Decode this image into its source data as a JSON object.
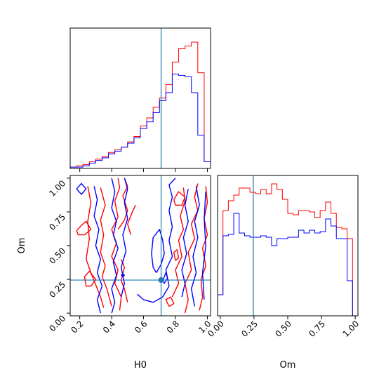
{
  "chart_data": {
    "type": "corner",
    "parameters": [
      "H0",
      "Om"
    ],
    "xlabel_H0": "H0",
    "xlabel_Om": "Om",
    "ylabel_Om": "Om",
    "truth": {
      "H0": 0.71,
      "Om": 0.245
    },
    "axis_ranges": {
      "H0": [
        0.14,
        1.02
      ],
      "Om": [
        -0.02,
        1.02
      ]
    },
    "ticks": {
      "H0": [
        "0.2",
        "0.4",
        "0.6",
        "0.8",
        "1.0"
      ],
      "Om": [
        "0.00",
        "0.25",
        "0.50",
        "0.75",
        "1.00"
      ]
    },
    "series_colors": {
      "red": "#ff0000",
      "blue": "#0000ff",
      "truth": "#1f77b4"
    },
    "hist_H0": {
      "bin_edges": [
        0.14,
        0.18,
        0.22,
        0.26,
        0.3,
        0.34,
        0.38,
        0.42,
        0.46,
        0.5,
        0.54,
        0.58,
        0.62,
        0.66,
        0.7,
        0.74,
        0.78,
        0.82,
        0.86,
        0.9,
        0.94,
        0.98,
        1.02
      ],
      "red": [
        1,
        2,
        3,
        5,
        7,
        9,
        12,
        14,
        16,
        20,
        24,
        32,
        38,
        46,
        53,
        63,
        80,
        90,
        92,
        95,
        72,
        5
      ],
      "blue": [
        1,
        1,
        2,
        4,
        6,
        8,
        11,
        13,
        16,
        19,
        23,
        30,
        35,
        42,
        51,
        57,
        71,
        70,
        69,
        57,
        25,
        5
      ]
    },
    "hist_Om": {
      "bin_edges": [
        -0.02,
        0.02,
        0.06,
        0.1,
        0.14,
        0.18,
        0.22,
        0.26,
        0.3,
        0.34,
        0.38,
        0.42,
        0.46,
        0.5,
        0.54,
        0.58,
        0.62,
        0.66,
        0.7,
        0.74,
        0.78,
        0.82,
        0.86,
        0.9,
        0.94,
        0.98,
        1.02
      ],
      "red": [
        15,
        75,
        82,
        86,
        91,
        91,
        88,
        87,
        90,
        87,
        94,
        90,
        83,
        73,
        72,
        75,
        75,
        74,
        70,
        75,
        81,
        73,
        63,
        62,
        55,
        0
      ],
      "blue": [
        15,
        57,
        58,
        73,
        59,
        57,
        56,
        56,
        57,
        56,
        50,
        55,
        55,
        56,
        56,
        61,
        59,
        61,
        59,
        60,
        69,
        64,
        55,
        55,
        25,
        0
      ]
    },
    "contours_2d": {
      "red": [
        [
          [
            0.35,
            0.04
          ],
          [
            0.33,
            0.12
          ],
          [
            0.3,
            0.21
          ],
          [
            0.27,
            0.3
          ],
          [
            0.24,
            0.4
          ],
          [
            0.26,
            0.55
          ],
          [
            0.25,
            0.68
          ],
          [
            0.27,
            0.82
          ],
          [
            0.25,
            0.94
          ]
        ],
        [
          [
            0.4,
            0.05
          ],
          [
            0.37,
            0.18
          ],
          [
            0.34,
            0.27
          ],
          [
            0.36,
            0.35
          ],
          [
            0.33,
            0.45
          ],
          [
            0.35,
            0.58
          ],
          [
            0.33,
            0.69
          ],
          [
            0.36,
            0.8
          ],
          [
            0.33,
            0.93
          ]
        ],
        [
          [
            0.45,
            0.02
          ],
          [
            0.46,
            0.12
          ],
          [
            0.42,
            0.22
          ],
          [
            0.44,
            0.32
          ],
          [
            0.4,
            0.42
          ],
          [
            0.43,
            0.52
          ],
          [
            0.4,
            0.62
          ],
          [
            0.44,
            0.71
          ],
          [
            0.42,
            0.83
          ],
          [
            0.45,
            0.93
          ],
          [
            0.44,
            1.0
          ]
        ],
        [
          [
            0.5,
            0.08
          ],
          [
            0.48,
            0.18
          ],
          [
            0.46,
            0.24
          ],
          [
            0.48,
            0.34
          ],
          [
            0.46,
            0.4
          ]
        ],
        [
          [
            0.44,
            0.62
          ],
          [
            0.48,
            0.69
          ],
          [
            0.5,
            0.76
          ],
          [
            0.47,
            0.87
          ],
          [
            0.5,
            0.94
          ],
          [
            0.48,
            1.0
          ]
        ],
        [
          [
            0.52,
            0.58
          ],
          [
            0.5,
            0.66
          ],
          [
            0.53,
            0.75
          ],
          [
            0.55,
            0.8
          ]
        ],
        [
          [
            0.18,
            0.61
          ],
          [
            0.21,
            0.65
          ],
          [
            0.24,
            0.68
          ],
          [
            0.27,
            0.62
          ],
          [
            0.23,
            0.58
          ],
          [
            0.19,
            0.58
          ],
          [
            0.18,
            0.61
          ]
        ],
        [
          [
            0.23,
            0.27
          ],
          [
            0.26,
            0.31
          ],
          [
            0.3,
            0.25
          ],
          [
            0.27,
            0.2
          ],
          [
            0.24,
            0.2
          ],
          [
            0.23,
            0.27
          ]
        ],
        [
          [
            0.78,
            0.12
          ],
          [
            0.82,
            0.22
          ],
          [
            0.8,
            0.32
          ],
          [
            0.84,
            0.42
          ],
          [
            0.82,
            0.54
          ],
          [
            0.85,
            0.62
          ],
          [
            0.83,
            0.72
          ],
          [
            0.86,
            0.83
          ],
          [
            0.85,
            0.93
          ]
        ],
        [
          [
            0.86,
            0.0
          ],
          [
            0.88,
            0.1
          ],
          [
            0.86,
            0.22
          ],
          [
            0.9,
            0.32
          ],
          [
            0.88,
            0.45
          ],
          [
            0.92,
            0.55
          ],
          [
            0.9,
            0.66
          ],
          [
            0.94,
            0.76
          ],
          [
            0.92,
            0.86
          ],
          [
            0.94,
            0.96
          ]
        ],
        [
          [
            0.95,
            0.02
          ],
          [
            0.97,
            0.12
          ],
          [
            0.96,
            0.25
          ],
          [
            0.99,
            0.35
          ],
          [
            0.97,
            0.48
          ],
          [
            1.0,
            0.58
          ],
          [
            0.98,
            0.7
          ],
          [
            1.0,
            0.82
          ],
          [
            0.99,
            0.94
          ]
        ],
        [
          [
            0.76,
            0.05
          ],
          [
            0.74,
            0.1
          ],
          [
            0.77,
            0.12
          ],
          [
            0.79,
            0.07
          ],
          [
            0.76,
            0.05
          ]
        ],
        [
          [
            0.8,
            0.39
          ],
          [
            0.79,
            0.45
          ],
          [
            0.81,
            0.47
          ],
          [
            0.82,
            0.41
          ],
          [
            0.8,
            0.39
          ]
        ],
        [
          [
            0.79,
            0.84
          ],
          [
            0.82,
            0.9
          ],
          [
            0.86,
            0.86
          ],
          [
            0.84,
            0.8
          ],
          [
            0.8,
            0.8
          ],
          [
            0.79,
            0.84
          ]
        ]
      ],
      "blue": [
        [
          [
            0.33,
            0.0
          ],
          [
            0.31,
            0.1
          ],
          [
            0.34,
            0.2
          ],
          [
            0.31,
            0.3
          ],
          [
            0.33,
            0.4
          ],
          [
            0.3,
            0.5
          ],
          [
            0.32,
            0.62
          ],
          [
            0.29,
            0.72
          ],
          [
            0.31,
            0.84
          ],
          [
            0.29,
            0.94
          ]
        ],
        [
          [
            0.4,
            0.0
          ],
          [
            0.42,
            0.08
          ],
          [
            0.4,
            0.18
          ],
          [
            0.43,
            0.28
          ],
          [
            0.41,
            0.38
          ],
          [
            0.44,
            0.48
          ],
          [
            0.41,
            0.58
          ],
          [
            0.43,
            0.68
          ],
          [
            0.4,
            0.78
          ],
          [
            0.42,
            0.9
          ],
          [
            0.4,
            1.0
          ]
        ],
        [
          [
            0.46,
            0.12
          ],
          [
            0.48,
            0.22
          ],
          [
            0.46,
            0.34
          ],
          [
            0.49,
            0.46
          ],
          [
            0.47,
            0.58
          ],
          [
            0.5,
            0.7
          ],
          [
            0.48,
            0.82
          ],
          [
            0.5,
            0.92
          ],
          [
            0.48,
            1.0
          ]
        ],
        [
          [
            0.56,
            0.14
          ],
          [
            0.6,
            0.1
          ],
          [
            0.66,
            0.08
          ],
          [
            0.72,
            0.12
          ],
          [
            0.76,
            0.2
          ],
          [
            0.74,
            0.32
          ],
          [
            0.78,
            0.42
          ],
          [
            0.76,
            0.54
          ],
          [
            0.78,
            0.64
          ],
          [
            0.76,
            0.76
          ],
          [
            0.78,
            0.86
          ],
          [
            0.76,
            0.95
          ],
          [
            0.8,
            1.0
          ]
        ],
        [
          [
            0.68,
            0.3
          ],
          [
            0.71,
            0.36
          ],
          [
            0.73,
            0.44
          ],
          [
            0.72,
            0.54
          ],
          [
            0.7,
            0.62
          ],
          [
            0.66,
            0.56
          ],
          [
            0.65,
            0.44
          ],
          [
            0.66,
            0.34
          ],
          [
            0.68,
            0.3
          ]
        ],
        [
          [
            0.72,
            0.24
          ],
          [
            0.74,
            0.3
          ],
          [
            0.75,
            0.26
          ],
          [
            0.73,
            0.22
          ],
          [
            0.72,
            0.24
          ]
        ],
        [
          [
            0.84,
            0.12
          ],
          [
            0.86,
            0.22
          ],
          [
            0.84,
            0.32
          ],
          [
            0.87,
            0.44
          ],
          [
            0.85,
            0.56
          ],
          [
            0.88,
            0.68
          ],
          [
            0.86,
            0.8
          ],
          [
            0.88,
            0.92
          ]
        ],
        [
          [
            0.92,
            0.05
          ],
          [
            0.9,
            0.18
          ],
          [
            0.93,
            0.3
          ],
          [
            0.91,
            0.42
          ],
          [
            0.94,
            0.56
          ],
          [
            0.92,
            0.68
          ],
          [
            0.95,
            0.8
          ],
          [
            0.93,
            0.94
          ]
        ],
        [
          [
            0.98,
            0.1
          ],
          [
            0.97,
            0.3
          ],
          [
            0.99,
            0.5
          ],
          [
            0.98,
            0.7
          ],
          [
            0.99,
            0.9
          ]
        ],
        [
          [
            0.18,
            0.92
          ],
          [
            0.21,
            0.96
          ],
          [
            0.24,
            0.92
          ],
          [
            0.21,
            0.88
          ],
          [
            0.18,
            0.92
          ]
        ],
        [
          [
            0.46,
            0.28
          ],
          [
            0.47,
            0.29
          ],
          [
            0.48,
            0.28
          ],
          [
            0.47,
            0.27
          ],
          [
            0.46,
            0.28
          ]
        ]
      ]
    },
    "grid": false
  }
}
